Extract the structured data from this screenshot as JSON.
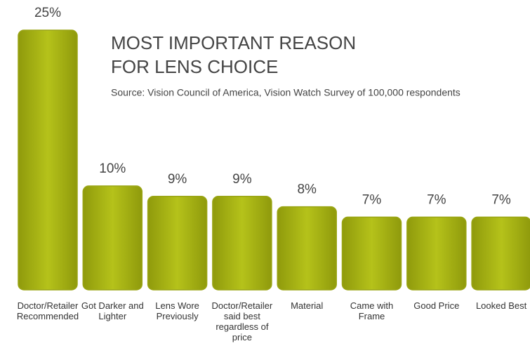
{
  "chart_data": {
    "type": "bar",
    "title": [
      "MOST IMPORTANT REASON",
      "FOR LENS CHOICE"
    ],
    "subtitle": "Source: Vision Council of America, Vision Watch Survey of 100,000 respondents",
    "categories": [
      "Doctor/Retailer Recommended",
      "Got Darker and Lighter",
      "Lens Wore Previously",
      "Doctor/Retailer said best regardless of price",
      "Material",
      "Came with Frame",
      "Good Price",
      "Looked Best"
    ],
    "values": [
      25,
      10,
      9,
      9,
      8,
      7,
      7,
      7
    ],
    "value_labels": [
      "25%",
      "10%",
      "9%",
      "9%",
      "8%",
      "7%",
      "7%",
      "7%"
    ],
    "color": "#b5c21a"
  }
}
